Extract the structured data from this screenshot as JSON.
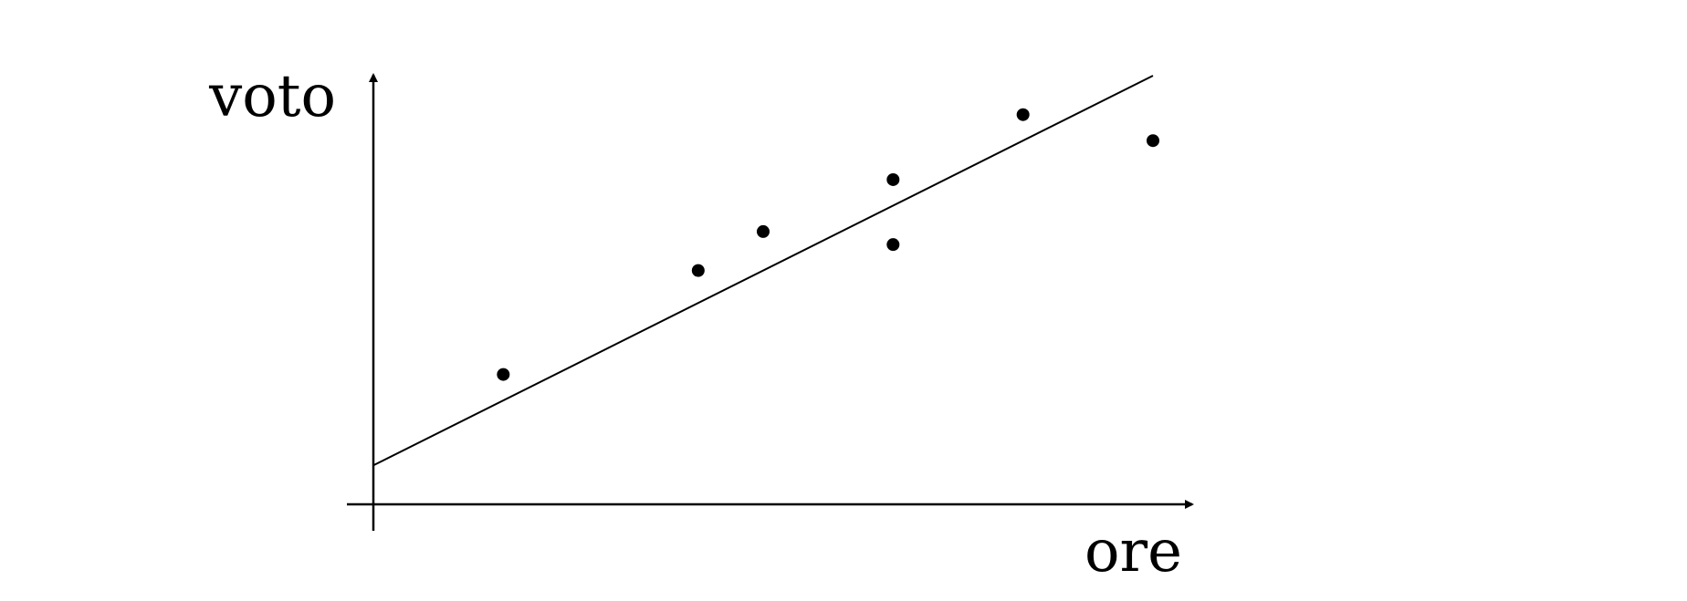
{
  "chart_data": {
    "type": "scatter",
    "title": "",
    "xlabel": "ore",
    "ylabel": "voto",
    "xlim": [
      0,
      12
    ],
    "ylim": [
      0,
      6.6
    ],
    "grid": false,
    "points": [
      {
        "x": 2,
        "y": 2.0
      },
      {
        "x": 5,
        "y": 3.6
      },
      {
        "x": 6,
        "y": 4.2
      },
      {
        "x": 8,
        "y": 4.0
      },
      {
        "x": 8,
        "y": 5.0
      },
      {
        "x": 10,
        "y": 6.0
      },
      {
        "x": 12,
        "y": 5.6
      }
    ],
    "fit_line": {
      "x": [
        0,
        12
      ],
      "y": [
        0.6,
        6.6
      ]
    }
  }
}
